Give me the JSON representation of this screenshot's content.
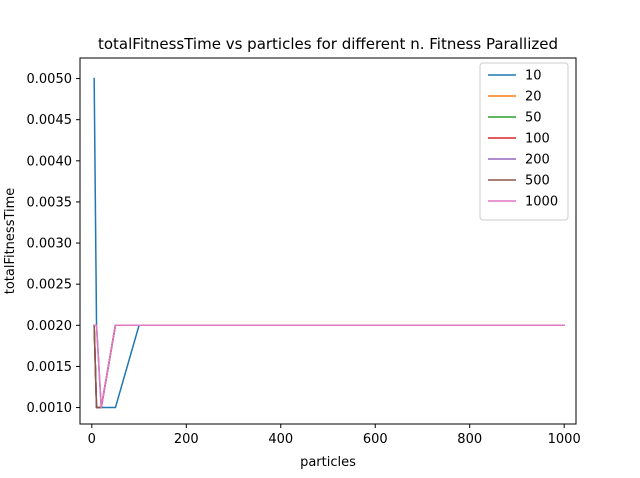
{
  "chart_data": {
    "type": "line",
    "title": "totalFitnessTime vs particles for different n. Fitness Parallized",
    "xlabel": "particles",
    "ylabel": "totalFitnessTime",
    "xlim": [
      -25,
      1025
    ],
    "ylim": [
      0.0008,
      0.00525
    ],
    "xticks": [
      0,
      200,
      400,
      600,
      800,
      1000
    ],
    "yticks": [
      0.001,
      0.0015,
      0.002,
      0.0025,
      0.003,
      0.0035,
      0.004,
      0.0045,
      0.005
    ],
    "xtick_labels": [
      "0",
      "200",
      "400",
      "600",
      "800",
      "1000"
    ],
    "ytick_labels": [
      "0.0010",
      "0.0015",
      "0.0020",
      "0.0025",
      "0.0030",
      "0.0035",
      "0.0040",
      "0.0045",
      "0.0050"
    ],
    "grid": false,
    "legend_position": "top-right",
    "x": [
      5,
      10,
      20,
      50,
      100,
      200,
      500,
      1000
    ],
    "series": [
      {
        "name": "10",
        "color": "#1f77b4",
        "values": [
          0.005,
          0.002,
          0.001,
          0.001,
          0.002,
          0.002,
          0.002,
          0.002
        ]
      },
      {
        "name": "20",
        "color": "#ff7f0e",
        "values": [
          0.002,
          0.001,
          0.001,
          0.002,
          0.002,
          0.002,
          0.002,
          0.002
        ]
      },
      {
        "name": "50",
        "color": "#2ca02c",
        "values": [
          0.002,
          0.001,
          0.001,
          0.002,
          0.002,
          0.002,
          0.002,
          0.002
        ]
      },
      {
        "name": "100",
        "color": "#d62728",
        "values": [
          0.002,
          0.001,
          0.001,
          0.002,
          0.002,
          0.002,
          0.002,
          0.002
        ]
      },
      {
        "name": "200",
        "color": "#9467bd",
        "values": [
          0.002,
          0.001,
          0.001,
          0.002,
          0.002,
          0.002,
          0.002,
          0.002
        ]
      },
      {
        "name": "500",
        "color": "#8c564b",
        "values": [
          0.002,
          0.001,
          0.001,
          0.002,
          0.002,
          0.002,
          0.002,
          0.002
        ]
      },
      {
        "name": "1000",
        "color": "#e377c2",
        "values": [
          0.002,
          0.002,
          0.001,
          0.002,
          0.002,
          0.002,
          0.002,
          0.002
        ]
      }
    ]
  }
}
